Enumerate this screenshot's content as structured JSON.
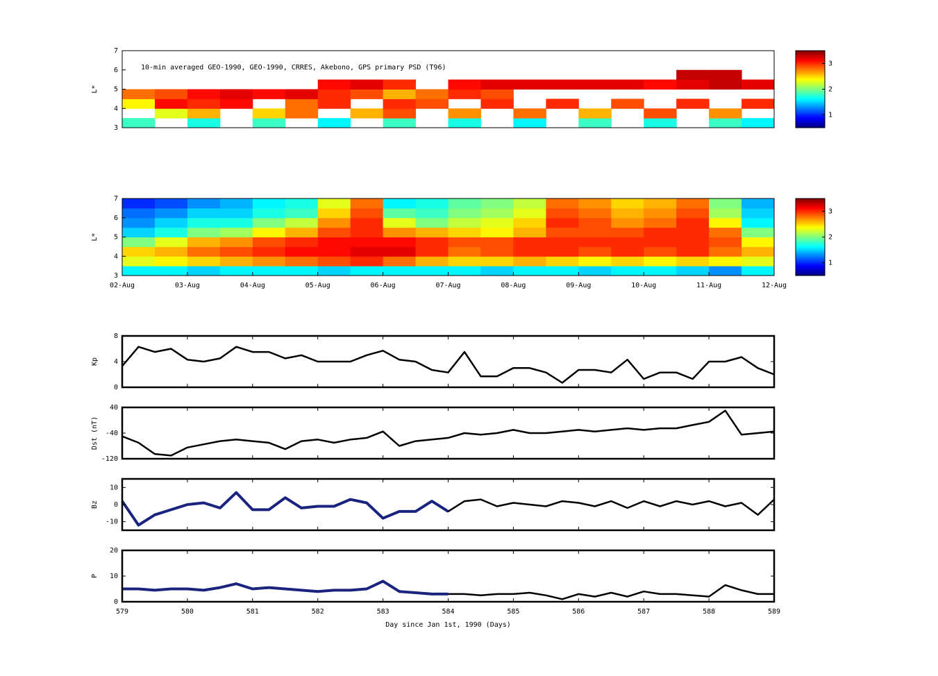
{
  "chart_data": [
    {
      "type": "heatmap",
      "annotation": "10-min averaged GEO-1990, GEO-1990, CRRES, Akebono, GPS  primary PSD (T96)",
      "ylabel": "L*",
      "xlim": [
        579,
        589
      ],
      "ylim": [
        3,
        7
      ],
      "yticks": [
        3,
        4,
        5,
        6,
        7
      ],
      "clim": [
        0.5,
        3.5
      ],
      "cticks": [
        1,
        2,
        3
      ],
      "x_bins": [
        579,
        579.5,
        580,
        580.5,
        581,
        581.5,
        582,
        582.5,
        583,
        583.5,
        584,
        584.5,
        585,
        585.5,
        586,
        586.5,
        587,
        587.5,
        588,
        588.5,
        589
      ],
      "y_bins": [
        3,
        3.5,
        4,
        4.5,
        5,
        5.5,
        6,
        6.5,
        7
      ],
      "z": [
        [
          1.8,
          null,
          1.7,
          null,
          1.8,
          null,
          1.6,
          null,
          1.8,
          null,
          1.7,
          null,
          1.6,
          null,
          1.8,
          null,
          1.7,
          null,
          1.8,
          1.6
        ],
        [
          null,
          2.3,
          2.6,
          null,
          2.5,
          2.8,
          null,
          2.6,
          2.9,
          null,
          2.7,
          null,
          2.8,
          null,
          2.6,
          null,
          2.9,
          null,
          2.7,
          null
        ],
        [
          2.4,
          3.1,
          3.0,
          3.1,
          null,
          2.8,
          3.0,
          null,
          3.0,
          2.9,
          null,
          3.0,
          null,
          3.0,
          null,
          2.9,
          null,
          3.0,
          null,
          3.0
        ],
        [
          2.8,
          2.9,
          3.1,
          3.2,
          3.1,
          3.2,
          3.0,
          2.9,
          2.6,
          2.8,
          3.0,
          2.9,
          null,
          null,
          null,
          null,
          null,
          null,
          null,
          null
        ],
        [
          null,
          null,
          null,
          null,
          null,
          null,
          3.1,
          3.2,
          3.0,
          null,
          3.1,
          3.2,
          3.2,
          3.2,
          3.2,
          3.2,
          3.1,
          3.2,
          3.3,
          3.2
        ],
        [
          null,
          null,
          null,
          null,
          null,
          null,
          null,
          null,
          null,
          null,
          null,
          null,
          null,
          null,
          null,
          null,
          null,
          3.3,
          3.3,
          null
        ],
        [
          null,
          null,
          null,
          null,
          null,
          null,
          null,
          null,
          null,
          null,
          null,
          null,
          null,
          null,
          null,
          null,
          null,
          null,
          null,
          null
        ],
        [
          null,
          null,
          null,
          null,
          null,
          null,
          null,
          null,
          null,
          null,
          null,
          null,
          null,
          null,
          null,
          null,
          null,
          null,
          null,
          null
        ]
      ]
    },
    {
      "type": "heatmap",
      "ylabel": "L*",
      "xlim": [
        579,
        589
      ],
      "ylim": [
        3,
        7
      ],
      "yticks": [
        3,
        4,
        5,
        6,
        7
      ],
      "clim": [
        0.5,
        3.5
      ],
      "cticks": [
        1,
        2,
        3
      ],
      "xticks": [
        {
          "value": 579,
          "label": "02-Aug"
        },
        {
          "value": 580,
          "label": "03-Aug"
        },
        {
          "value": 581,
          "label": "04-Aug"
        },
        {
          "value": 582,
          "label": "05-Aug"
        },
        {
          "value": 583,
          "label": "06-Aug"
        },
        {
          "value": 584,
          "label": "07-Aug"
        },
        {
          "value": 585,
          "label": "08-Aug"
        },
        {
          "value": 586,
          "label": "09-Aug"
        },
        {
          "value": 587,
          "label": "10-Aug"
        },
        {
          "value": 588,
          "label": "11-Aug"
        },
        {
          "value": 589,
          "label": "12-Aug"
        }
      ],
      "x_bins": [
        579,
        579.5,
        580,
        580.5,
        581,
        581.5,
        582,
        582.5,
        583,
        583.5,
        584,
        584.5,
        585,
        585.5,
        586,
        586.5,
        587,
        587.5,
        588,
        588.5,
        589
      ],
      "y_bins": [
        3,
        3.5,
        4,
        4.5,
        5,
        5.5,
        6,
        6.5,
        7
      ],
      "z": [
        [
          1.6,
          1.6,
          1.5,
          1.6,
          1.6,
          1.6,
          1.5,
          1.6,
          1.6,
          1.6,
          1.6,
          1.5,
          1.6,
          1.6,
          1.5,
          1.6,
          1.6,
          1.5,
          1.3,
          1.6
        ],
        [
          2.3,
          2.4,
          2.5,
          2.6,
          2.7,
          2.8,
          2.9,
          3.0,
          2.8,
          2.6,
          2.5,
          2.5,
          2.6,
          2.5,
          2.4,
          2.5,
          2.4,
          2.5,
          2.4,
          2.3
        ],
        [
          2.5,
          2.6,
          2.8,
          2.9,
          3.0,
          3.1,
          3.1,
          3.2,
          3.2,
          3.0,
          2.8,
          2.9,
          3.0,
          3.0,
          2.9,
          3.0,
          2.9,
          3.0,
          2.8,
          2.6
        ],
        [
          2.0,
          2.3,
          2.6,
          2.7,
          2.9,
          3.0,
          3.1,
          3.1,
          3.1,
          3.0,
          2.9,
          2.9,
          3.0,
          3.0,
          3.0,
          3.0,
          3.0,
          3.0,
          2.9,
          2.4
        ],
        [
          1.5,
          1.7,
          2.0,
          2.1,
          2.4,
          2.6,
          2.9,
          3.0,
          2.7,
          2.6,
          2.5,
          2.4,
          2.6,
          2.9,
          2.9,
          2.9,
          3.0,
          3.0,
          2.8,
          2.0
        ],
        [
          1.3,
          1.5,
          1.7,
          1.7,
          2.0,
          2.2,
          2.7,
          3.0,
          2.3,
          2.0,
          2.2,
          2.3,
          2.5,
          3.0,
          2.9,
          2.7,
          2.8,
          3.0,
          2.4,
          1.6
        ],
        [
          1.2,
          1.3,
          1.5,
          1.5,
          1.7,
          1.8,
          2.5,
          2.9,
          1.9,
          1.8,
          2.0,
          2.1,
          2.3,
          2.9,
          2.8,
          2.6,
          2.7,
          2.9,
          2.1,
          1.5
        ],
        [
          1.0,
          1.1,
          1.3,
          1.4,
          1.6,
          1.7,
          2.3,
          2.8,
          1.6,
          1.7,
          1.9,
          2.0,
          2.2,
          2.8,
          2.7,
          2.5,
          2.6,
          2.8,
          2.0,
          1.4
        ]
      ]
    },
    {
      "type": "line",
      "ylabel": "Kp",
      "xlim": [
        579,
        589
      ],
      "ylim": [
        0,
        8
      ],
      "yticks": [
        0,
        4,
        8
      ],
      "x": [
        579,
        579.25,
        579.5,
        579.75,
        580,
        580.25,
        580.5,
        580.75,
        581,
        581.25,
        581.5,
        581.75,
        582,
        582.25,
        582.5,
        582.75,
        583,
        583.25,
        583.5,
        583.75,
        584,
        584.25,
        584.5,
        584.75,
        585,
        585.25,
        585.5,
        585.75,
        586,
        586.25,
        586.5,
        586.75,
        587,
        587.25,
        587.5,
        587.75,
        588,
        588.25,
        588.5,
        588.75,
        589
      ],
      "series": [
        {
          "color": "#000000",
          "width": 2.5,
          "values": [
            3.3,
            6.3,
            5.5,
            6,
            4.3,
            4,
            4.5,
            6.3,
            5.5,
            5.5,
            4.5,
            5,
            4,
            4,
            4,
            5,
            5.7,
            4.3,
            4,
            2.7,
            2.3,
            5.5,
            1.7,
            1.7,
            3,
            3,
            2.3,
            0.7,
            2.7,
            2.7,
            2.3,
            4.3,
            1.3,
            2.3,
            2.3,
            1.3,
            4,
            4,
            4.7,
            3,
            2
          ]
        }
      ]
    },
    {
      "type": "line",
      "ylabel": "Dst (nT)",
      "xlim": [
        579,
        589
      ],
      "ylim": [
        -120,
        40
      ],
      "yticks": [
        -120,
        -40,
        40
      ],
      "x": [
        579,
        579.25,
        579.5,
        579.75,
        580,
        580.25,
        580.5,
        580.75,
        581,
        581.25,
        581.5,
        581.75,
        582,
        582.25,
        582.5,
        582.75,
        583,
        583.25,
        583.5,
        583.75,
        584,
        584.25,
        584.5,
        584.75,
        585,
        585.25,
        585.5,
        585.75,
        586,
        586.25,
        586.5,
        586.75,
        587,
        587.25,
        587.5,
        587.75,
        588,
        588.25,
        588.5,
        588.75,
        589
      ],
      "series": [
        {
          "color": "#000000",
          "width": 2.5,
          "values": [
            -50,
            -70,
            -105,
            -110,
            -85,
            -75,
            -65,
            -60,
            -65,
            -70,
            -90,
            -65,
            -60,
            -70,
            -60,
            -55,
            -35,
            -80,
            -65,
            -60,
            -55,
            -40,
            -45,
            -40,
            -30,
            -40,
            -40,
            -35,
            -30,
            -35,
            -30,
            -25,
            -30,
            -25,
            -25,
            -15,
            -5,
            30,
            -45,
            -40,
            -35
          ]
        }
      ]
    },
    {
      "type": "line",
      "ylabel": "Bz",
      "xlim": [
        579,
        589
      ],
      "ylim": [
        -15,
        15
      ],
      "yticks": [
        -10,
        0,
        10
      ],
      "x": [
        579,
        579.25,
        579.5,
        579.75,
        580,
        580.25,
        580.5,
        580.75,
        581,
        581.25,
        581.5,
        581.75,
        582,
        582.25,
        582.5,
        582.75,
        583,
        583.25,
        583.5,
        583.75,
        584,
        584.25,
        584.5,
        584.75,
        585,
        585.25,
        585.5,
        585.75,
        586,
        586.25,
        586.5,
        586.75,
        587,
        587.25,
        587.5,
        587.75,
        588,
        588.25,
        588.5,
        588.75,
        589
      ],
      "series": [
        {
          "color": "#000000",
          "width": 2.5,
          "values": [
            2,
            -12,
            -6,
            -3,
            0,
            1,
            -2,
            7,
            -3,
            -3,
            4,
            -2,
            -1,
            -1,
            3,
            1,
            -8,
            -4,
            -4,
            2,
            -4,
            2,
            3,
            -1,
            1,
            0,
            -1,
            2,
            1,
            -1,
            2,
            -2,
            2,
            -1,
            2,
            0,
            2,
            -1,
            1,
            -6,
            3
          ]
        },
        {
          "color": "#1a237e",
          "width": 4,
          "values": [
            2,
            -12,
            -6,
            -3,
            0,
            1,
            -2,
            7,
            -3,
            -3,
            4,
            -2,
            -1,
            -1,
            3,
            1,
            -8,
            -4,
            -4,
            2,
            -4,
            null,
            null,
            null,
            null,
            null,
            null,
            null,
            null,
            null,
            null,
            null,
            null,
            null,
            null,
            null,
            null,
            null,
            null,
            null,
            null
          ]
        }
      ]
    },
    {
      "type": "line",
      "ylabel": "P",
      "xlabel": "Day since Jan 1st, 1990 (Days)",
      "xlim": [
        579,
        589
      ],
      "ylim": [
        0,
        20
      ],
      "yticks": [
        0,
        10,
        20
      ],
      "xticks": [
        579,
        580,
        581,
        582,
        583,
        584,
        585,
        586,
        587,
        588,
        589
      ],
      "x": [
        579,
        579.25,
        579.5,
        579.75,
        580,
        580.25,
        580.5,
        580.75,
        581,
        581.25,
        581.5,
        581.75,
        582,
        582.25,
        582.5,
        582.75,
        583,
        583.25,
        583.5,
        583.75,
        584,
        584.25,
        584.5,
        584.75,
        585,
        585.25,
        585.5,
        585.75,
        586,
        586.25,
        586.5,
        586.75,
        587,
        587.25,
        587.5,
        587.75,
        588,
        588.25,
        588.5,
        588.75,
        589
      ],
      "series": [
        {
          "color": "#000000",
          "width": 2.5,
          "values": [
            5,
            5,
            4.5,
            5,
            5,
            4.5,
            5.5,
            7,
            5,
            5.5,
            5,
            4.5,
            4,
            4.5,
            4.5,
            5,
            8,
            4,
            3.5,
            3,
            3,
            3,
            2.5,
            3,
            3,
            3.5,
            2.5,
            1,
            3,
            2,
            3.5,
            2,
            4,
            3,
            3,
            2.5,
            2,
            6.5,
            4.5,
            3,
            3
          ]
        },
        {
          "color": "#1a237e",
          "width": 4,
          "values": [
            5,
            5,
            4.5,
            5,
            5,
            4.5,
            5.5,
            7,
            5,
            5.5,
            5,
            4.5,
            4,
            4.5,
            4.5,
            5,
            8,
            4,
            3.5,
            3,
            3,
            null,
            null,
            null,
            null,
            null,
            null,
            null,
            null,
            null,
            null,
            null,
            null,
            null,
            null,
            null,
            null,
            null,
            null,
            null,
            null
          ]
        }
      ]
    }
  ]
}
